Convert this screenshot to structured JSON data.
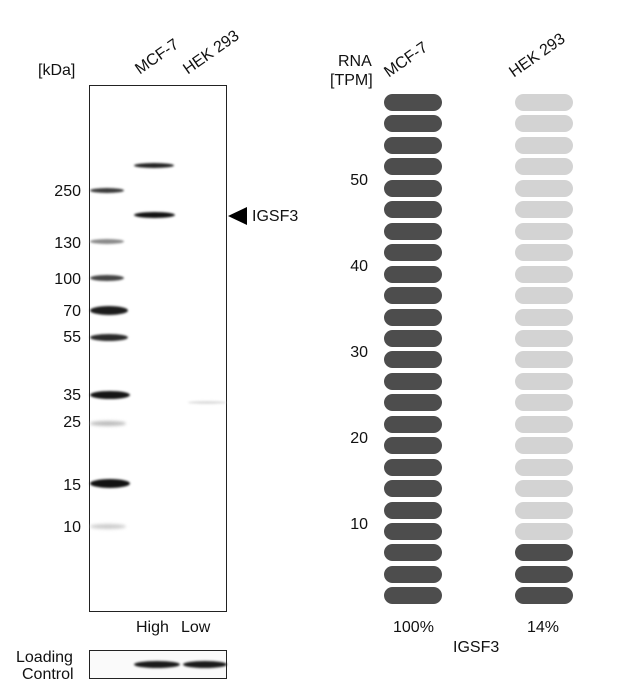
{
  "western_blot": {
    "unit_label": "[kDa]",
    "lanes": [
      "MCF-7",
      "HEK 293"
    ],
    "markers": [
      "250",
      "130",
      "100",
      "70",
      "55",
      "35",
      "25",
      "15",
      "10"
    ],
    "target_label": "IGSF3",
    "expression_labels": [
      "High",
      "Low"
    ],
    "loading_control_label": [
      "Loading",
      "Control"
    ]
  },
  "rna": {
    "axis_title": [
      "RNA",
      "[TPM]"
    ],
    "cell_lines": [
      "MCF-7",
      "HEK 293"
    ],
    "y_ticks": [
      "50",
      "40",
      "30",
      "20",
      "10"
    ],
    "percentages": [
      "100%",
      "14%"
    ],
    "gene": "IGSF3",
    "colors": {
      "filled": "#4d4d4d",
      "empty": "#d3d3d3"
    },
    "total_units": 24,
    "filled_units": [
      24,
      3
    ]
  }
}
